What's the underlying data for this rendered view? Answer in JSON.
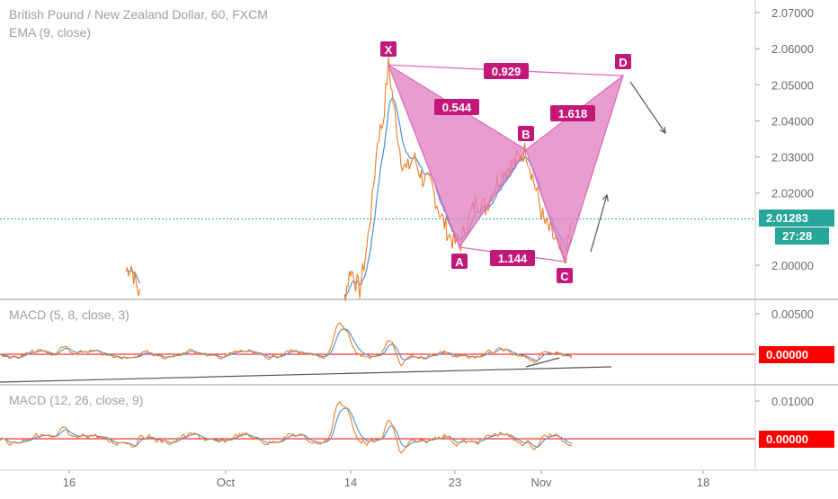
{
  "chart_data": {
    "type": "line",
    "panes": [
      {
        "title": "British Pound / New Zealand Dollar, 60, FXCM",
        "subtitle": "EMA (9, close)",
        "yticks": [
          "2.07000",
          "2.06000",
          "2.05000",
          "2.04000",
          "2.03000",
          "2.02000",
          "2.00000"
        ],
        "ylim": [
          1.991,
          2.072
        ],
        "last_price": "2.01283",
        "countdown": "27:28",
        "harmonic_points": [
          {
            "label": "X",
            "price": 2.0555
          },
          {
            "label": "A",
            "price": 2.005
          },
          {
            "label": "B",
            "price": 2.032
          },
          {
            "label": "C",
            "price": 2.001
          },
          {
            "label": "D",
            "price": 2.0525
          }
        ],
        "ratios": [
          "0.929",
          "0.544",
          "1.618",
          "1.144"
        ]
      },
      {
        "title": "MACD (5, 8, close, 3)",
        "yticks": [
          "0.00500",
          "0.00000"
        ],
        "zero_label": "0.00000"
      },
      {
        "title": "MACD (12, 26, close, 9)",
        "yticks": [
          "0.01000",
          "0.00000"
        ],
        "zero_label": "0.00000"
      }
    ],
    "x_ticks": [
      "16",
      "Oct",
      "14",
      "23",
      "Nov",
      "18"
    ],
    "colors": {
      "price": "#f07c24",
      "ema": "#4a8fd6",
      "pattern_fill": "#e07cc0",
      "pattern_stroke": "#d966b5",
      "label_bg": "#c2187a",
      "zero_line": "#ff0000",
      "last_price_bg": "#26a69a",
      "axis_text": "#6b6b6b"
    }
  }
}
